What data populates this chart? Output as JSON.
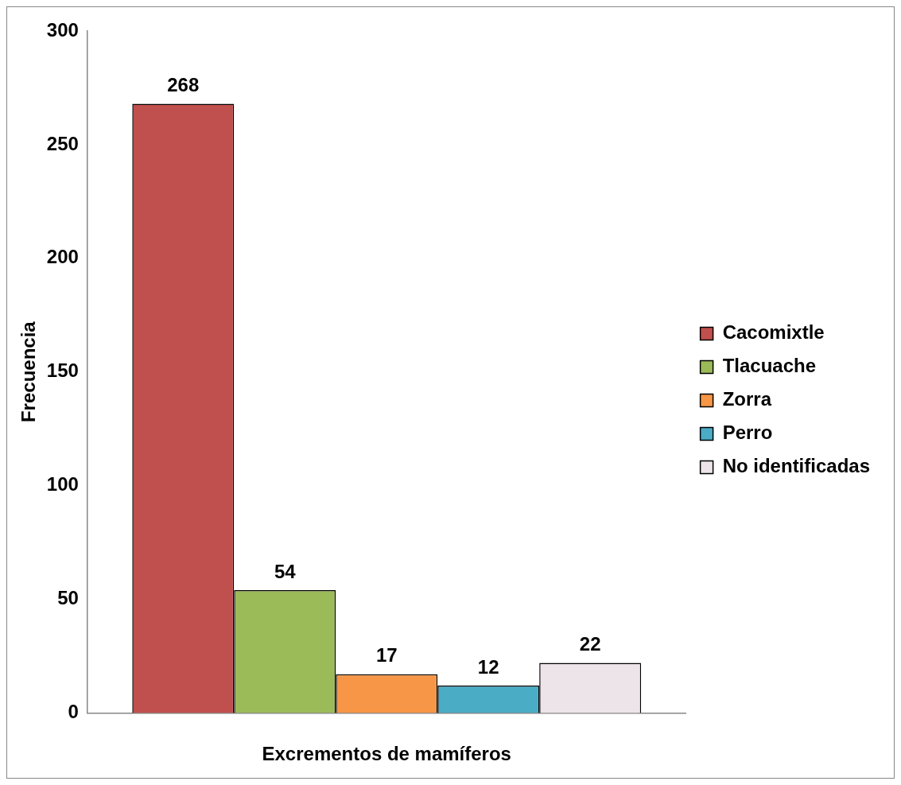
{
  "chart_data": {
    "type": "bar",
    "xlabel": "Excrementos de mamíferos",
    "ylabel": "Frecuencia",
    "categories": [
      null
    ],
    "series": [
      {
        "name": "Cacomixtle",
        "color": "#c0504d",
        "values": [
          268
        ]
      },
      {
        "name": "Tlacuache",
        "color": "#9bbb59",
        "values": [
          54
        ]
      },
      {
        "name": "Zorra",
        "color": "#f79646",
        "values": [
          17
        ]
      },
      {
        "name": "Perro",
        "color": "#4bacc6",
        "values": [
          12
        ]
      },
      {
        "name": "No identificadas",
        "color": "#ede4ea",
        "values": [
          22
        ]
      }
    ],
    "ylim": [
      0,
      300
    ],
    "yticks": [
      0,
      50,
      100,
      150,
      200,
      250,
      300
    ],
    "grid": false,
    "legend": "right",
    "data_labels": true
  }
}
